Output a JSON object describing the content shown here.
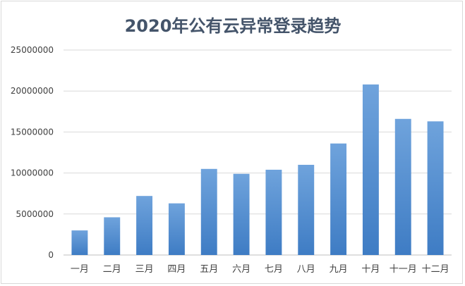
{
  "chart_data": {
    "type": "bar",
    "title": "2020年公有云异常登录趋势",
    "xlabel": "",
    "ylabel": "",
    "categories": [
      "一月",
      "二月",
      "三月",
      "四月",
      "五月",
      "六月",
      "七月",
      "八月",
      "九月",
      "十月",
      "十一月",
      "十二月"
    ],
    "values": [
      3000000,
      4600000,
      7200000,
      6300000,
      10500000,
      9900000,
      10400000,
      11000000,
      13600000,
      20800000,
      16600000,
      16300000
    ],
    "ylim": [
      0,
      25000000
    ],
    "yticks": [
      "0",
      "5000000",
      "10000000",
      "15000000",
      "20000000",
      "25000000"
    ],
    "ytick_values": [
      0,
      5000000,
      10000000,
      15000000,
      20000000,
      25000000
    ],
    "grid": true,
    "legend": "none",
    "colors": {
      "bar_top": "#6fa3dc",
      "bar_bottom": "#3e7cc4",
      "grid": "#d9d9d9",
      "title": "#44546a",
      "text": "#404040"
    }
  }
}
